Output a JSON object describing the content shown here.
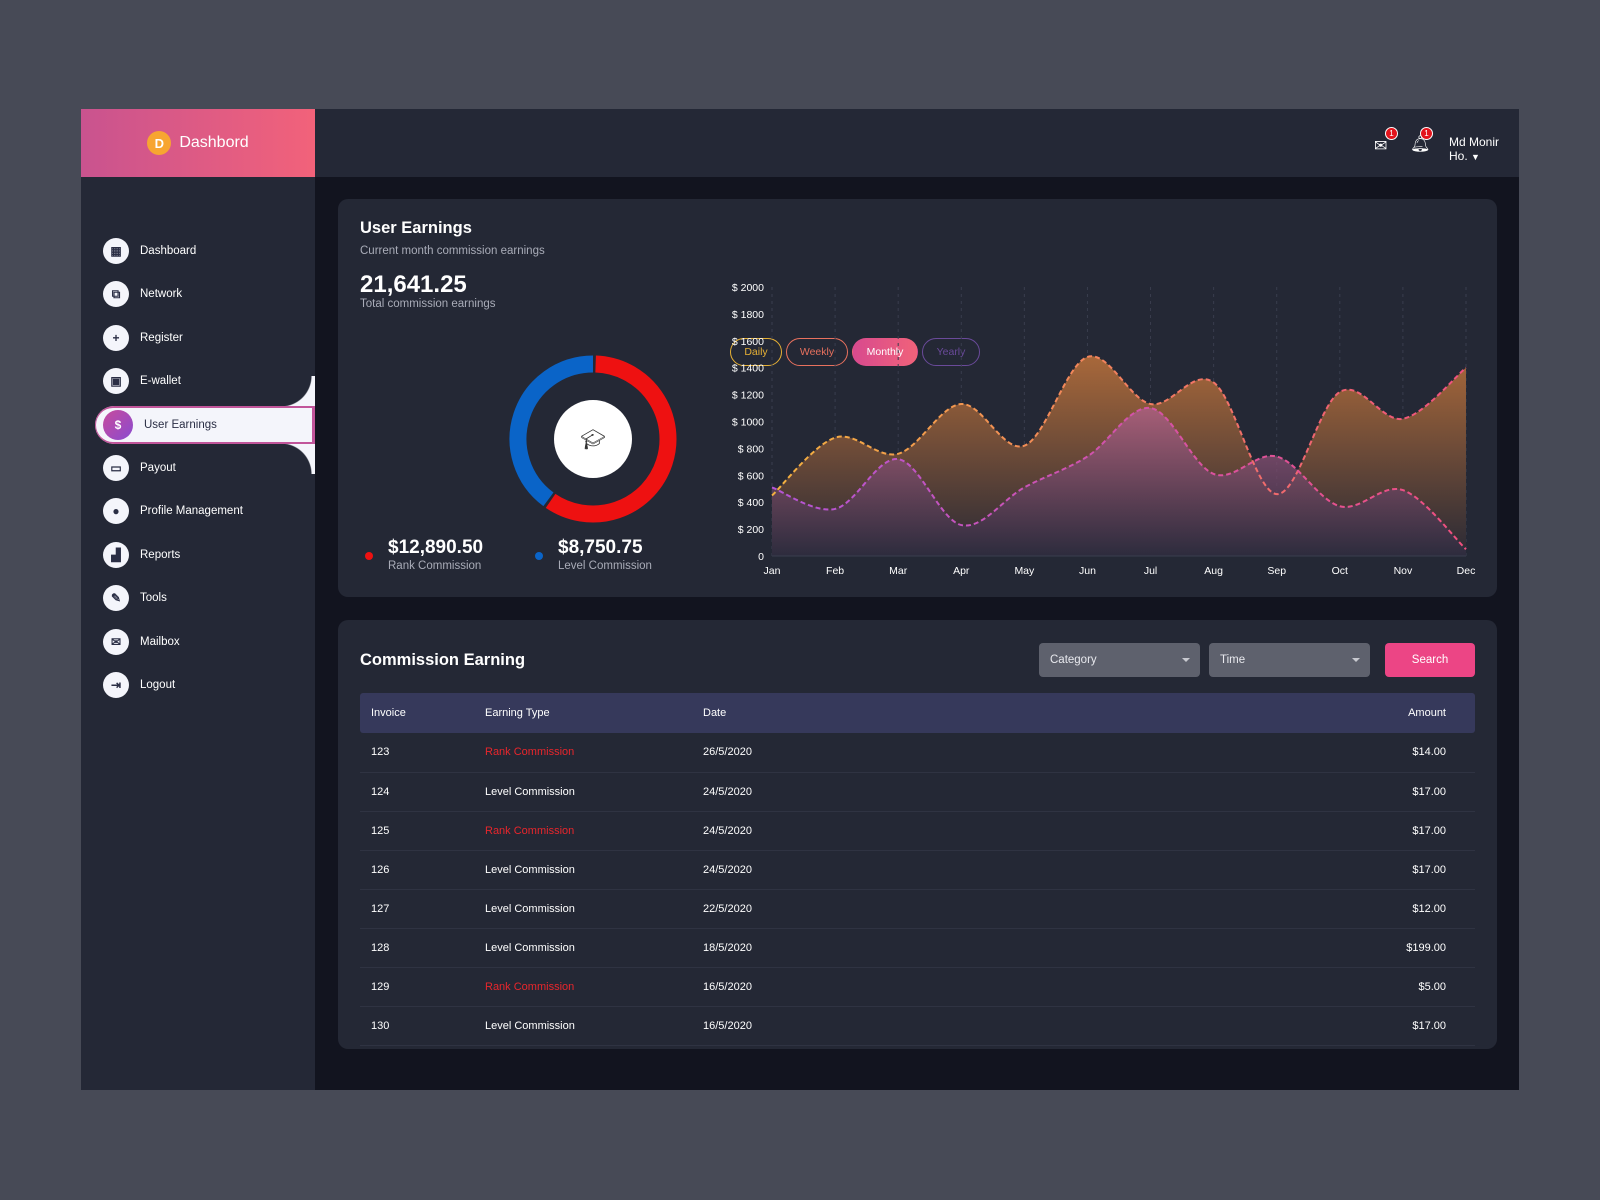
{
  "brand": {
    "letter": "D",
    "name": "Dashbord"
  },
  "header": {
    "mail_count": "1",
    "notif_count": "1",
    "user_name": "Md Monir Ho.",
    "status_color": "#2ecc71"
  },
  "sidebar": {
    "items": [
      {
        "label": "Dashboard",
        "icon": "grid-icon"
      },
      {
        "label": "Network",
        "icon": "sitemap-icon"
      },
      {
        "label": "Register",
        "icon": "user-plus-icon"
      },
      {
        "label": "E-wallet",
        "icon": "briefcase-icon"
      },
      {
        "label": "User Earnings",
        "icon": "dollar-icon",
        "active": true
      },
      {
        "label": "Payout",
        "icon": "credit-card-icon"
      },
      {
        "label": "Profile Management",
        "icon": "user-cog-icon"
      },
      {
        "label": "Reports",
        "icon": "chart-icon"
      },
      {
        "label": "Tools",
        "icon": "wrench-icon"
      },
      {
        "label": "Mailbox",
        "icon": "envelope-icon"
      },
      {
        "label": "Logout",
        "icon": "logout-icon"
      }
    ]
  },
  "earnings": {
    "title": "User Earnings",
    "subtitle": "Current month commission earnings",
    "total": "21,641.25",
    "total_label": "Total commission earnings",
    "rank_amount": "$12,890.50",
    "rank_label": "Rank Commission",
    "level_amount": "$8,750.75",
    "level_label": "Level Commission",
    "tabs": [
      {
        "label": "Daily",
        "color": "#e6b035"
      },
      {
        "label": "Weekly",
        "color": "#e8715e"
      },
      {
        "label": "Monthly",
        "active": true
      },
      {
        "label": "Yearly",
        "color": "#6a4a9a"
      }
    ]
  },
  "chart_data": {
    "type": "area",
    "categories": [
      "Jan",
      "Feb",
      "Mar",
      "Apr",
      "May",
      "Jun",
      "Jul",
      "Aug",
      "Sep",
      "Oct",
      "Nov",
      "Dec"
    ],
    "y_ticks": [
      "0",
      "$ 200",
      "$ 400",
      "$ 600",
      "$ 800",
      "$ 1000",
      "$ 1200",
      "$ 1400",
      "$ 1600",
      "$ 1800",
      "$ 2000"
    ],
    "ylim": [
      0,
      2000
    ],
    "series": [
      {
        "values": [
          450,
          880,
          760,
          1130,
          820,
          1480,
          1130,
          1290,
          460,
          1220,
          1020,
          1400
        ],
        "color": "#f0824c"
      },
      {
        "values": [
          510,
          350,
          720,
          230,
          510,
          740,
          1100,
          610,
          740,
          370,
          490,
          50
        ],
        "color": "#c45ab8"
      }
    ],
    "donut": {
      "type": "pie",
      "values": [
        12890.5,
        8750.75
      ],
      "colors": [
        "#ee1111",
        "#0a64c8"
      ]
    }
  },
  "commission": {
    "title": "Commission Earning",
    "category_placeholder": "Category",
    "time_placeholder": "Time",
    "search_label": "Search",
    "columns": [
      "Invoice",
      "Earning Type",
      "Date",
      "Amount"
    ],
    "rows": [
      [
        "123",
        "Rank Commission",
        "26/5/2020",
        "$14.00"
      ],
      [
        "124",
        "Level Commission",
        "24/5/2020",
        "$17.00"
      ],
      [
        "125",
        "Rank Commission",
        "24/5/2020",
        "$17.00"
      ],
      [
        "126",
        "Level Commission",
        "24/5/2020",
        "$17.00"
      ],
      [
        "127",
        "Level Commission",
        "22/5/2020",
        "$12.00"
      ],
      [
        "128",
        "Level Commission",
        "18/5/2020",
        "$199.00"
      ],
      [
        "129",
        "Rank Commission",
        "16/5/2020",
        "$5.00"
      ],
      [
        "130",
        "Level Commission",
        "16/5/2020",
        "$17.00"
      ]
    ]
  }
}
